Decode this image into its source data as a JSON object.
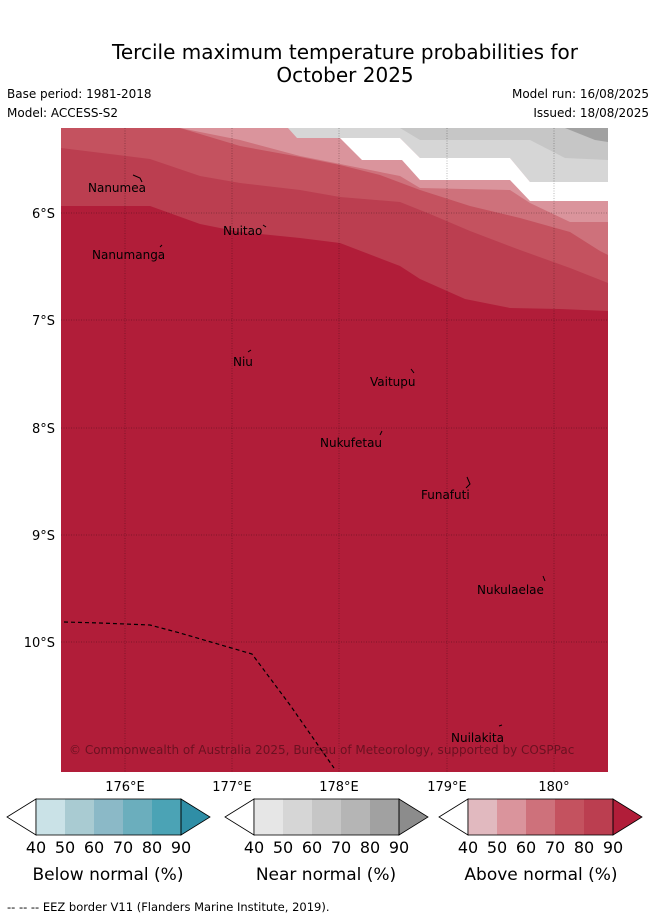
{
  "header": {
    "title_line1": "Tercile maximum temperature probabilities for",
    "title_line2": "October 2025",
    "base_period": "Base period: 1981-2018",
    "model": "Model: ACCESS-S2",
    "model_run": "Model run: 16/08/2025",
    "issued": "Issued: 18/08/2025"
  },
  "map": {
    "lat_labels": [
      "6°S",
      "7°S",
      "8°S",
      "9°S",
      "10°S"
    ],
    "lon_labels": [
      "176°E",
      "177°E",
      "178°E",
      "179°E",
      "180°"
    ],
    "places": [
      "Nanumea",
      "Nuitao",
      "Nanumanga",
      "Niu",
      "Vaitupu",
      "Nukufetau",
      "Funafuti",
      "Nukulaelae",
      "Nuilakita"
    ],
    "copyright": "© Commonwealth of Australia 2025, Bureau of Meteorology, supported by COSPPac",
    "colors": {
      "above_90": "#b11d39",
      "above_80": "#bb3e50",
      "above_70": "#c4525f",
      "above_60": "#ce717b",
      "above_50": "#da949c",
      "near_50": "#d6d6d6",
      "near_60": "#c6c6c6",
      "near_80": "#a1a1a1"
    }
  },
  "legends": [
    {
      "title": "Below normal (%)",
      "ticks": [
        "40",
        "50",
        "60",
        "70",
        "80",
        "90"
      ],
      "colors": [
        "#cae2e7",
        "#a9cbd2",
        "#8bb9c7",
        "#6baebd",
        "#4ba3b5",
        "#2f8ea6"
      ]
    },
    {
      "title": "Near normal (%)",
      "ticks": [
        "40",
        "50",
        "60",
        "70",
        "80",
        "90"
      ],
      "colors": [
        "#e6e6e6",
        "#d6d6d6",
        "#c6c6c6",
        "#b5b5b5",
        "#a1a1a1",
        "#8c8c8c"
      ]
    },
    {
      "title": "Above normal (%)",
      "ticks": [
        "40",
        "50",
        "60",
        "70",
        "80",
        "90"
      ],
      "colors": [
        "#e1b9bf",
        "#da949c",
        "#ce717b",
        "#c4525f",
        "#bb3e50",
        "#b11d39"
      ]
    }
  ],
  "footer": "--  --  -- EEZ border V11 (Flanders Marine Institute, 2019)."
}
